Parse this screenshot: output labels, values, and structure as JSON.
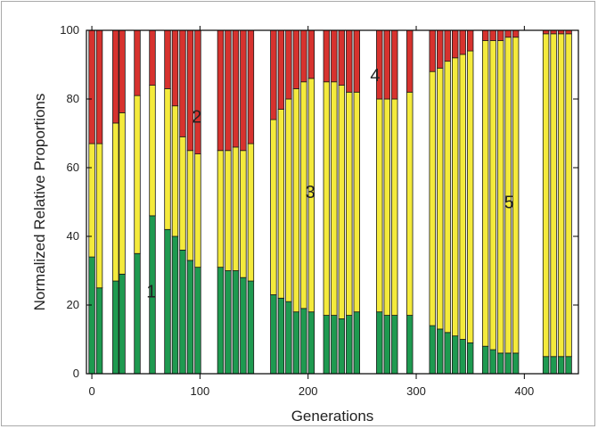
{
  "chart_data": {
    "type": "bar",
    "stacked": true,
    "xlabel": "Generations",
    "ylabel": "Normalized Relative Proportions",
    "xlim": [
      -5,
      450
    ],
    "ylim": [
      0,
      100
    ],
    "xticks": [
      "0",
      "100",
      "200",
      "300",
      "400"
    ],
    "xtick_values": [
      0,
      100,
      200,
      300,
      400
    ],
    "yticks": [
      "0",
      "20",
      "40",
      "60",
      "80",
      "100"
    ],
    "ytick_values": [
      0,
      20,
      40,
      60,
      80,
      100
    ],
    "colors": {
      "green": "#1e9a50",
      "yellow": "#f4ea3c",
      "red": "#d7322e"
    },
    "series_colors": [
      "green",
      "yellow",
      "red"
    ],
    "x": [
      0,
      7,
      22,
      28,
      42,
      56,
      70,
      77,
      84,
      91,
      98,
      119,
      126,
      133,
      140,
      147,
      168,
      175,
      182,
      189,
      196,
      203,
      217,
      224,
      231,
      238,
      245,
      266,
      273,
      280,
      294,
      315,
      322,
      329,
      336,
      343,
      350,
      364,
      371,
      378,
      385,
      392,
      420,
      427,
      434,
      441
    ],
    "bottom_values": [
      34,
      25,
      27,
      29,
      35,
      46,
      42,
      40,
      36,
      33,
      31,
      31,
      30,
      30,
      28,
      27,
      23,
      22,
      21,
      18,
      19,
      18,
      17,
      17,
      16,
      17,
      18,
      18,
      17,
      17,
      17,
      14,
      13,
      12,
      11,
      10,
      9,
      8,
      7,
      6,
      6,
      6,
      5,
      5,
      5,
      5
    ],
    "mid_tops": [
      67,
      67,
      73,
      76,
      81,
      84,
      83,
      78,
      69,
      65,
      64,
      65,
      65,
      66,
      65,
      67,
      74,
      77,
      80,
      83,
      85,
      86,
      85,
      85,
      84,
      82,
      82,
      80,
      80,
      80,
      82,
      88,
      89,
      91,
      92,
      93,
      94,
      97,
      97,
      97,
      98,
      98,
      99,
      99,
      99,
      99
    ],
    "annotations": [
      {
        "text": "1",
        "x": 55,
        "y": 24
      },
      {
        "text": "2",
        "x": 97,
        "y": 75
      },
      {
        "text": "3",
        "x": 202,
        "y": 53
      },
      {
        "text": "4",
        "x": 262,
        "y": 87
      },
      {
        "text": "5",
        "x": 386,
        "y": 50
      }
    ]
  }
}
